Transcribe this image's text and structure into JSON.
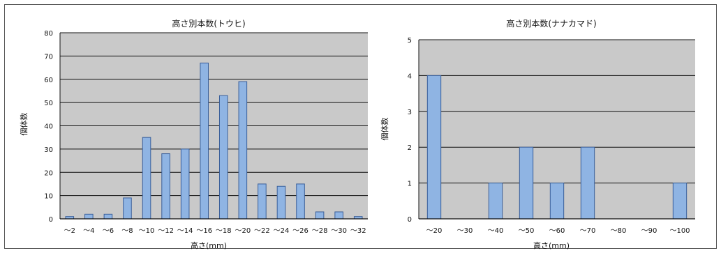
{
  "chart_data": [
    {
      "type": "bar",
      "title": "高さ別本数(トウヒ)",
      "xlabel": "高さ(mm)",
      "ylabel": "個体数",
      "categories": [
        "～2",
        "～4",
        "～6",
        "～8",
        "～10",
        "～12",
        "～14",
        "～16",
        "～18",
        "～20",
        "～22",
        "～24",
        "～26",
        "～28",
        "～30",
        "～32"
      ],
      "values": [
        1,
        2,
        2,
        9,
        35,
        28,
        30,
        67,
        53,
        59,
        15,
        14,
        15,
        3,
        3,
        1
      ],
      "ylim": [
        0,
        80
      ],
      "yticks": [
        0,
        10,
        20,
        30,
        40,
        50,
        60,
        70,
        80
      ],
      "grid": true,
      "legend": "none",
      "colors": {
        "bar": "#8fb4e3",
        "bar_edge": "#3a5f9a",
        "plot_bg": "#c9c9c9"
      }
    },
    {
      "type": "bar",
      "title": "高さ別本数(ナナカマド)",
      "xlabel": "高さ(mm)",
      "ylabel": "個体数",
      "categories": [
        "～20",
        "～30",
        "～40",
        "～50",
        "～60",
        "～70",
        "～80",
        "～90",
        "～100"
      ],
      "values": [
        4,
        0,
        1,
        2,
        1,
        2,
        0,
        0,
        1
      ],
      "ylim": [
        0,
        5
      ],
      "yticks": [
        0,
        1,
        2,
        3,
        4,
        5
      ],
      "grid": true,
      "legend": "none",
      "colors": {
        "bar": "#8fb4e3",
        "bar_edge": "#3a5f9a",
        "plot_bg": "#c9c9c9"
      }
    }
  ]
}
